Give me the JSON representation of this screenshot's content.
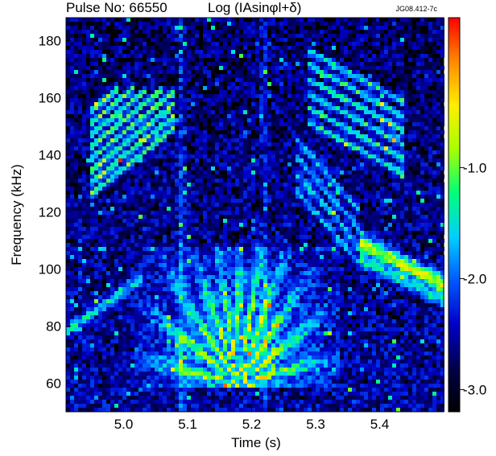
{
  "chart_data": {
    "type": "heatmap",
    "title_left": "Pulse No: 66550",
    "title_center": "Log (IAsinφl+δ)",
    "figure_id": "JG08.412-7c",
    "xlabel": "Time (s)",
    "ylabel": "Frequency (kHz)",
    "xlim": [
      4.91,
      5.5
    ],
    "ylim": [
      50,
      188
    ],
    "x_ticks": [
      5.0,
      5.1,
      5.2,
      5.3,
      5.4
    ],
    "x_tick_labels": [
      "5.0",
      "5.1",
      "5.2",
      "5.3",
      "5.4"
    ],
    "y_ticks": [
      60,
      80,
      100,
      120,
      140,
      160,
      180
    ],
    "y_tick_labels": [
      "60",
      "80",
      "100",
      "120",
      "140",
      "160",
      "180"
    ],
    "colorbar": {
      "range": [
        -3.2,
        0.35
      ],
      "ticks": [
        -3.0,
        -2.0,
        -1.0
      ],
      "tick_labels": [
        "-3.0",
        "-2.0",
        "-1.0"
      ],
      "colors": [
        "#000000",
        "#00004a",
        "#0000c8",
        "#0058ff",
        "#00d0ff",
        "#00ff7a",
        "#a8ff00",
        "#ffee00",
        "#ff8a00",
        "#ff0000"
      ]
    },
    "features": [
      {
        "kind": "cascade",
        "t_start": 4.96,
        "t_end": 5.07,
        "f_start": 130,
        "f_end": 160
      },
      {
        "kind": "cascade",
        "t_start": 5.3,
        "t_end": 5.42,
        "f_start": 172,
        "f_end": 145
      },
      {
        "kind": "fan",
        "t_center": 5.18,
        "f_center": 72
      },
      {
        "kind": "chirp",
        "t_start": 5.38,
        "t_end": 5.5,
        "f_start": 108,
        "f_end": 95
      },
      {
        "kind": "chirp",
        "t_start": 4.91,
        "t_end": 5.02,
        "f_start": 78,
        "f_end": 96
      }
    ]
  }
}
